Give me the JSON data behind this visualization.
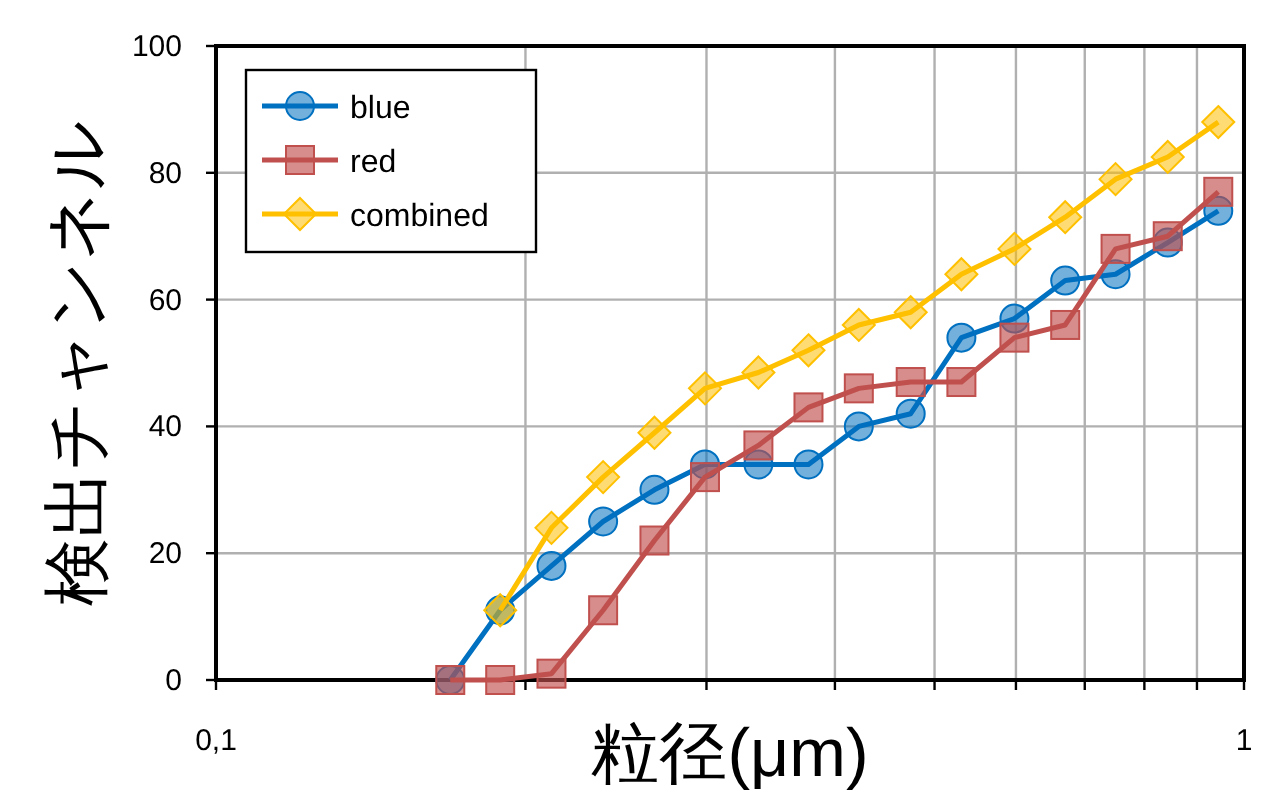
{
  "chart_data": {
    "type": "line",
    "xlabel": "粒径(μm)",
    "ylabel": "検出チャンネル",
    "log": "x",
    "x": [
      0.169,
      0.189,
      0.212,
      0.238,
      0.267,
      0.299,
      0.337,
      0.377,
      0.422,
      0.474,
      0.531,
      0.598,
      0.67,
      0.75,
      0.843,
      0.944
    ],
    "series": [
      {
        "name": "blue",
        "color": "#0070c0",
        "marker": "circle",
        "values": [
          0,
          11,
          18,
          25,
          30,
          34,
          34,
          34,
          40,
          42,
          54,
          57,
          63,
          64,
          69,
          74
        ]
      },
      {
        "name": "red",
        "color": "#c0504d",
        "marker": "square",
        "values": [
          0,
          0,
          1,
          11,
          22,
          32,
          37,
          43,
          46,
          47,
          47,
          54,
          56,
          68,
          70,
          77
        ]
      },
      {
        "name": "combined",
        "color": "#ffc000",
        "marker": "diamond",
        "values": [
          null,
          11,
          24,
          32,
          39,
          46,
          48.5,
          52,
          56,
          58,
          64,
          68,
          73,
          79,
          82.5,
          88
        ]
      }
    ],
    "xlim": [
      0.1,
      1
    ],
    "ylim": [
      0,
      100
    ],
    "xticks": [
      {
        "value": 0.1,
        "label": "0,1"
      },
      {
        "value": 0.2,
        "label": null
      },
      {
        "value": 0.3,
        "label": null
      },
      {
        "value": 0.4,
        "label": null
      },
      {
        "value": 0.5,
        "label": null
      },
      {
        "value": 0.6,
        "label": null
      },
      {
        "value": 0.7,
        "label": null
      },
      {
        "value": 0.8,
        "label": null
      },
      {
        "value": 0.9,
        "label": null
      },
      {
        "value": 1,
        "label": "1"
      }
    ],
    "yticks": [
      0,
      20,
      40,
      60,
      80,
      100
    ],
    "grid": true,
    "legend": "top left",
    "line_style": "solid"
  }
}
